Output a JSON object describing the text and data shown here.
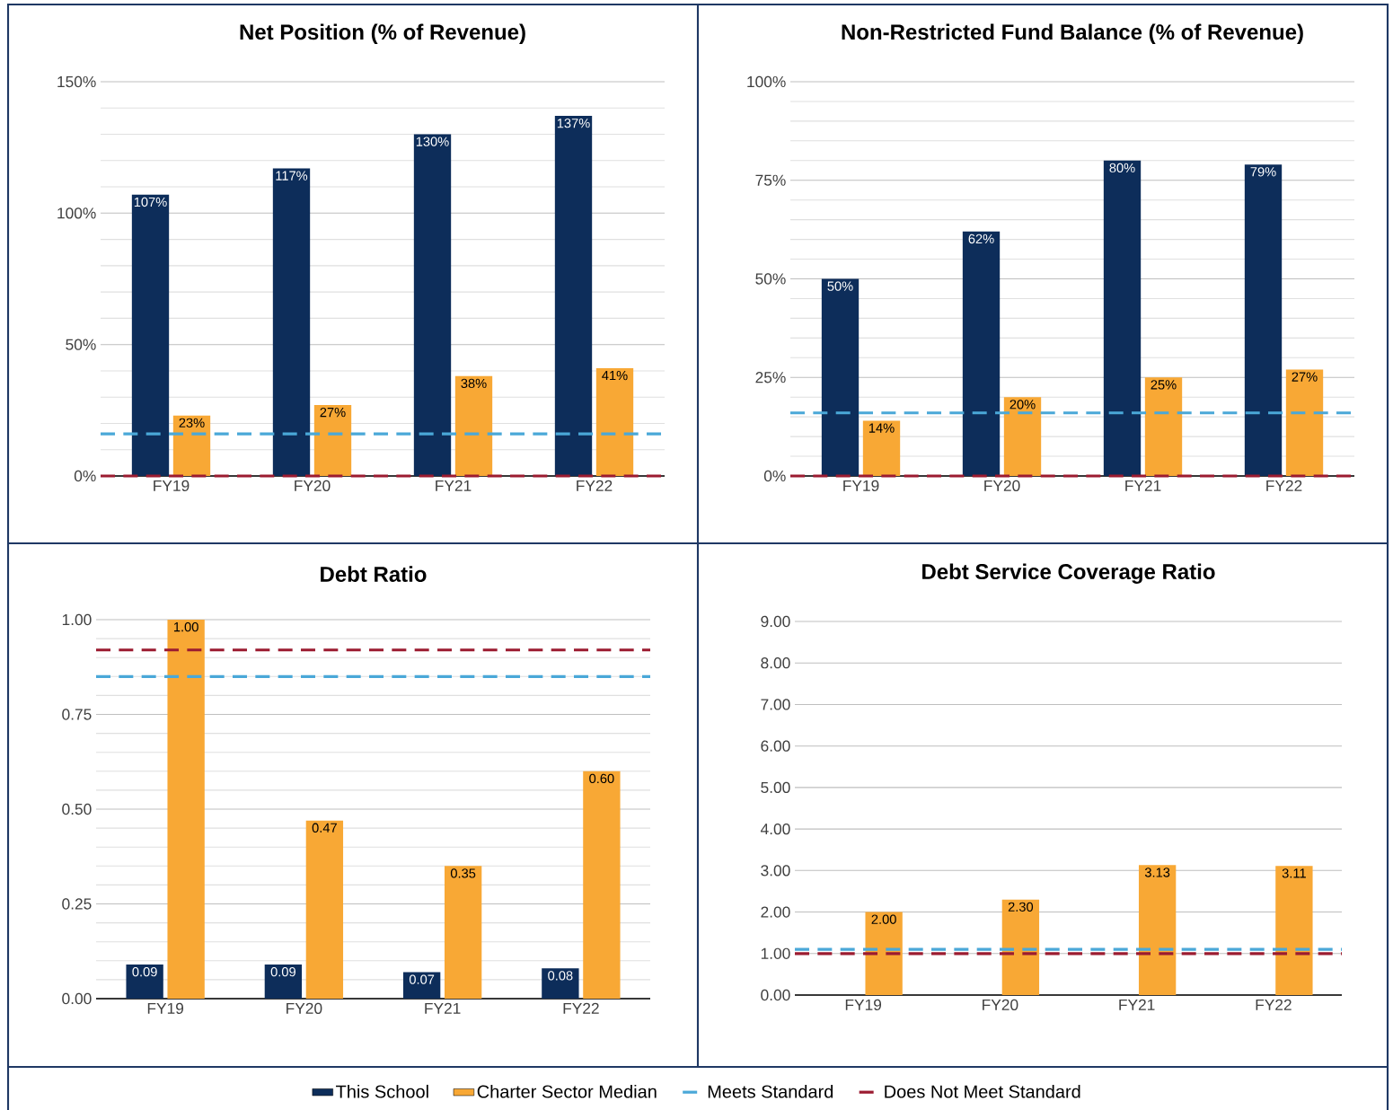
{
  "chart_data": [
    {
      "type": "bar",
      "title": "Net Position (% of Revenue)",
      "categories": [
        "FY19",
        "FY20",
        "FY21",
        "FY22"
      ],
      "series": [
        {
          "name": "This School",
          "color": "#0d2d5a",
          "values": [
            107,
            117,
            130,
            137
          ],
          "value_labels": [
            "107%",
            "117%",
            "130%",
            "137%"
          ]
        },
        {
          "name": "Charter Sector Median",
          "color": "#f8a835",
          "values": [
            23,
            27,
            38,
            41
          ],
          "value_labels": [
            "23%",
            "27%",
            "38%",
            "41%"
          ]
        }
      ],
      "ylim": [
        0,
        150
      ],
      "yticks": [
        {
          "value": 0,
          "label": "0%"
        },
        {
          "value": 50,
          "label": "50%"
        },
        {
          "value": 100,
          "label": "100%"
        },
        {
          "value": 150,
          "label": "150%"
        }
      ],
      "grid": "y",
      "legend": "bottom",
      "ref_lines": [
        {
          "axis": "y",
          "value": 16,
          "label": "Meets Standard",
          "color": "#4aa8d8",
          "line_style": "dashed"
        },
        {
          "axis": "y",
          "value": 0,
          "label": "Does Not Meet Standard",
          "color": "#9b1b30",
          "line_style": "dashed"
        }
      ]
    },
    {
      "type": "bar",
      "title": "Non-Restricted Fund Balance (% of Revenue)",
      "categories": [
        "FY19",
        "FY20",
        "FY21",
        "FY22"
      ],
      "series": [
        {
          "color": "#0d2d5a",
          "values": [
            50,
            62,
            80,
            79
          ],
          "value_labels": [
            "50%",
            "62%",
            "80%",
            "79%"
          ]
        },
        {
          "color": "#f8a835",
          "values": [
            14,
            20,
            25,
            27
          ],
          "value_labels": [
            "14%",
            "20%",
            "25%",
            "27%"
          ]
        }
      ],
      "ylim": [
        0,
        100
      ],
      "yticks": [
        {
          "value": 0,
          "label": "0%"
        },
        {
          "value": 25,
          "label": "25%"
        },
        {
          "value": 50,
          "label": "50%"
        },
        {
          "value": 75,
          "label": "75%"
        },
        {
          "value": 100,
          "label": "100%"
        }
      ],
      "grid": "y",
      "ref_lines": [
        {
          "axis": "y",
          "value": 16,
          "color": "#4aa8d8",
          "line_style": "dashed"
        },
        {
          "axis": "y",
          "value": 0,
          "color": "#9b1b30",
          "line_style": "dashed"
        }
      ]
    },
    {
      "type": "bar",
      "title": "Debt Ratio",
      "categories": [
        "FY19",
        "FY20",
        "FY21",
        "FY22"
      ],
      "series": [
        {
          "color": "#0d2d5a",
          "values": [
            0.09,
            0.09,
            0.07,
            0.08
          ],
          "value_labels": [
            "0.09",
            "0.09",
            "0.07",
            "0.08"
          ]
        },
        {
          "color": "#f8a835",
          "values": [
            1.0,
            0.47,
            0.35,
            0.6
          ],
          "value_labels": [
            "1.00",
            "0.47",
            "0.35",
            "0.60"
          ]
        }
      ],
      "ylim": [
        0,
        1
      ],
      "yticks": [
        {
          "value": 0,
          "label": "0.00"
        },
        {
          "value": 0.25,
          "label": "0.25"
        },
        {
          "value": 0.5,
          "label": "0.50"
        },
        {
          "value": 0.75,
          "label": "0.75"
        },
        {
          "value": 1,
          "label": "1.00"
        }
      ],
      "grid": "y",
      "ref_lines": [
        {
          "axis": "y",
          "value": 0.85,
          "color": "#4aa8d8",
          "line_style": "dashed"
        },
        {
          "axis": "y",
          "value": 0.92,
          "color": "#9b1b30",
          "line_style": "dashed"
        }
      ]
    },
    {
      "type": "bar",
      "title": "Debt Service Coverage Ratio",
      "categories": [
        "FY19",
        "FY20",
        "FY21",
        "FY22"
      ],
      "series": [
        {
          "color": "#0d2d5a",
          "values": [
            null,
            null,
            null,
            null
          ]
        },
        {
          "color": "#f8a835",
          "values": [
            2.0,
            2.3,
            3.13,
            3.11
          ],
          "value_labels": [
            "2.00",
            "2.30",
            "3.13",
            "3.11"
          ]
        }
      ],
      "ylim": [
        0,
        9
      ],
      "yticks": [
        {
          "value": 0,
          "label": "0.00"
        },
        {
          "value": 1,
          "label": "1.00"
        },
        {
          "value": 2,
          "label": "2.00"
        },
        {
          "value": 3,
          "label": "3.00"
        },
        {
          "value": 4,
          "label": "4.00"
        },
        {
          "value": 5,
          "label": "5.00"
        },
        {
          "value": 6,
          "label": "6.00"
        },
        {
          "value": 7,
          "label": "7.00"
        },
        {
          "value": 8,
          "label": "8.00"
        },
        {
          "value": 9,
          "label": "9.00"
        }
      ],
      "grid": "y",
      "ref_lines": [
        {
          "axis": "y",
          "value": 1.1,
          "color": "#4aa8d8",
          "line_style": "dashed"
        },
        {
          "axis": "y",
          "value": 1.0,
          "color": "#9b1b30",
          "line_style": "dashed"
        }
      ]
    }
  ]
}
